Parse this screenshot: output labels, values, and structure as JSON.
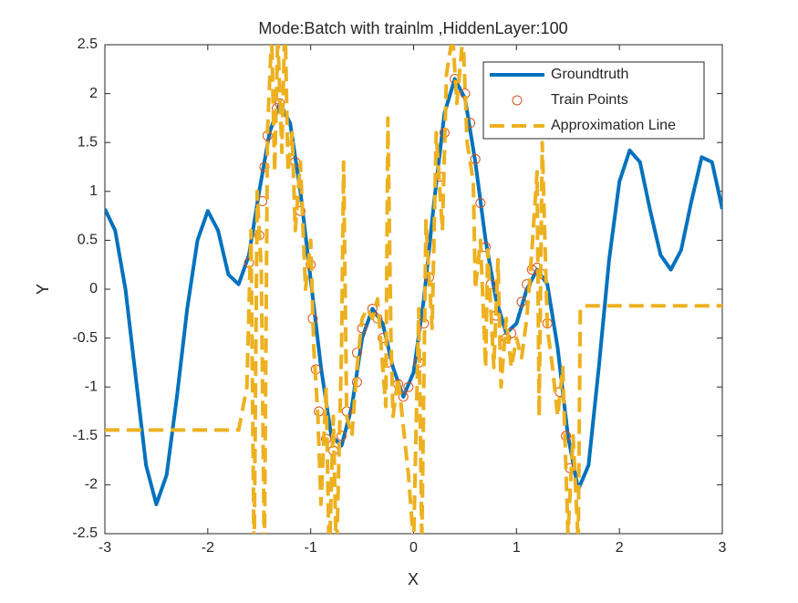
{
  "chart_data": {
    "type": "line",
    "title": "Mode:Batch with trainlm ,HiddenLayer:100",
    "xlabel": "X",
    "ylabel": "Y",
    "xlim": [
      -3,
      3
    ],
    "ylim": [
      -2.5,
      2.5
    ],
    "xticks": [
      -3,
      -2,
      -1,
      0,
      1,
      2,
      3
    ],
    "yticks": [
      -2.5,
      -2,
      -1.5,
      -1,
      -0.5,
      0,
      0.5,
      1,
      1.5,
      2,
      2.5
    ],
    "legend": "northeast",
    "grid": false,
    "series": [
      {
        "name": "Groundtruth",
        "color": "#0072bd",
        "style": "solid",
        "x": [
          -3,
          -2.9,
          -2.8,
          -2.7,
          -2.6,
          -2.5,
          -2.4,
          -2.3,
          -2.2,
          -2.1,
          -2,
          -1.9,
          -1.8,
          -1.7,
          -1.6,
          -1.5,
          -1.4,
          -1.3,
          -1.2,
          -1.1,
          -1,
          -0.9,
          -0.8,
          -0.7,
          -0.6,
          -0.5,
          -0.4,
          -0.3,
          -0.2,
          -0.1,
          0,
          0.1,
          0.2,
          0.3,
          0.4,
          0.5,
          0.6,
          0.7,
          0.8,
          0.9,
          1,
          1.1,
          1.2,
          1.3,
          1.4,
          1.5,
          1.6,
          1.7,
          1.8,
          1.9,
          2,
          2.1,
          2.2,
          2.3,
          2.4,
          2.5,
          2.6,
          2.7,
          2.8,
          2.9,
          3
        ],
        "values": [
          0.82,
          0.6,
          0,
          -0.9,
          -1.8,
          -2.2,
          -1.9,
          -1.1,
          -0.2,
          0.5,
          0.8,
          0.6,
          0.15,
          0.05,
          0.35,
          1,
          1.6,
          1.9,
          1.7,
          1,
          0.1,
          -0.8,
          -1.5,
          -1.6,
          -1.2,
          -0.5,
          -0.2,
          -0.35,
          -0.8,
          -1.1,
          -0.85,
          -0.1,
          0.9,
          1.8,
          2.15,
          1.95,
          1.3,
          0.5,
          -0.1,
          -0.45,
          -0.35,
          0,
          0.2,
          0.05,
          -0.6,
          -1.5,
          -2.05,
          -1.8,
          -0.8,
          0.3,
          1.1,
          1.42,
          1.3,
          0.8,
          0.35,
          0.2,
          0.4,
          0.9,
          1.35,
          1.3,
          0.82
        ]
      },
      {
        "name": "Train Points",
        "color": "#d95319",
        "style": "circle",
        "x": [
          -1.6,
          -1.5,
          -1.47,
          -1.45,
          -1.42,
          -1.33,
          -1.3,
          -1.15,
          -1.1,
          -1,
          -0.98,
          -0.95,
          -0.92,
          -0.85,
          -0.78,
          -0.7,
          -0.65,
          -0.55,
          -0.55,
          -0.5,
          -0.4,
          -0.35,
          -0.3,
          -0.25,
          -0.15,
          -0.1,
          -0.05,
          0.05,
          0.1,
          0.15,
          0.25,
          0.3,
          0.4,
          0.5,
          0.55,
          0.6,
          0.65,
          0.7,
          0.75,
          0.8,
          0.9,
          0.95,
          1.05,
          1.1,
          1.15,
          1.2,
          1.25,
          1.3,
          1.42,
          1.48,
          1.52
        ],
        "values": [
          0.27,
          0.55,
          0.9,
          1.25,
          1.57,
          1.85,
          1.9,
          1.3,
          0.8,
          0.25,
          -0.3,
          -0.82,
          -1.25,
          -1.53,
          -1.65,
          -1.5,
          -1.25,
          -0.95,
          -0.65,
          -0.4,
          -0.2,
          -0.3,
          -0.5,
          -0.75,
          -0.97,
          -1.1,
          -1,
          -0.75,
          -0.35,
          0.12,
          1.15,
          1.6,
          2.15,
          2,
          1.7,
          1.33,
          0.88,
          0.43,
          0.05,
          -0.27,
          -0.5,
          -0.45,
          -0.13,
          0.05,
          0.2,
          0.22,
          0.15,
          -0.35,
          -1.05,
          -1.5,
          -1.83
        ]
      },
      {
        "name": "Approximation Line",
        "color": "#edb120",
        "style": "dashed",
        "x": [
          -3,
          -1.7,
          -1.62,
          -1.58,
          -1.55,
          -1.52,
          -1.48,
          -1.45,
          -1.42,
          -1.38,
          -1.35,
          -1.32,
          -1.28,
          -1.25,
          -1.22,
          -1.18,
          -1.15,
          -1.1,
          -1.05,
          -1,
          -0.97,
          -0.93,
          -0.9,
          -0.85,
          -0.82,
          -0.78,
          -0.75,
          -0.7,
          -0.68,
          -0.65,
          -0.6,
          -0.55,
          -0.5,
          -0.45,
          -0.4,
          -0.35,
          -0.3,
          -0.27,
          -0.25,
          -0.22,
          -0.2,
          -0.15,
          -0.1,
          -0.05,
          0,
          0.05,
          0.08,
          0.12,
          0.18,
          0.22,
          0.28,
          0.32,
          0.38,
          0.42,
          0.48,
          0.52,
          0.58,
          0.6,
          0.65,
          0.7,
          0.72,
          0.78,
          0.82,
          0.85,
          0.9,
          0.95,
          1,
          1.05,
          1.1,
          1.15,
          1.2,
          1.22,
          1.25,
          1.3,
          1.35,
          1.4,
          1.45,
          1.5,
          1.55,
          1.6,
          1.62,
          1.65,
          3
        ],
        "values": [
          -1.44,
          -1.44,
          -1,
          0.6,
          -2.8,
          1,
          0.2,
          -2.8,
          1.6,
          2.6,
          1.2,
          2.6,
          1.4,
          2.8,
          1.2,
          1.6,
          0.6,
          1.3,
          0,
          0.5,
          -0.6,
          -1.3,
          -2.2,
          -1,
          -2.8,
          -1.3,
          -2.8,
          -0.6,
          1.3,
          -1.3,
          -1.5,
          -0.8,
          -0.3,
          -0.2,
          -0.3,
          -0.1,
          -0.8,
          -1.2,
          1.75,
          -0.5,
          -1.3,
          -0.9,
          -1.4,
          -1.9,
          -2.6,
          -0.2,
          -2.6,
          0.7,
          -0.4,
          1.6,
          0.6,
          2.2,
          2.6,
          1.9,
          2.6,
          1.5,
          1.1,
          0,
          0.5,
          -0.8,
          0.4,
          -0.8,
          0.3,
          -1,
          -0.3,
          -0.8,
          -0.5,
          -0.7,
          -0.3,
          0.4,
          1.2,
          -1.3,
          1.5,
          -0.4,
          -0.8,
          -1.3,
          -0.8,
          -2.5,
          -1.5,
          -2.6,
          -0.2,
          -0.17,
          -0.17
        ]
      }
    ]
  }
}
